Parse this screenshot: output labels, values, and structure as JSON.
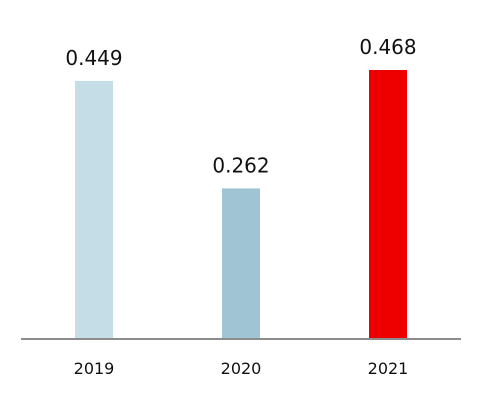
{
  "chart_data": {
    "type": "bar",
    "categories": [
      "2019",
      "2020",
      "2021"
    ],
    "values": [
      0.449,
      0.262,
      0.468
    ],
    "value_labels": [
      "0.449",
      "0.262",
      "0.468"
    ],
    "colors": [
      "#c5dde6",
      "#9fc5d4",
      "#ee0000"
    ],
    "axis_color": "#8c8c8c",
    "ylim": [
      0,
      0.468
    ],
    "grid": false,
    "title": "",
    "xlabel": "",
    "ylabel": ""
  }
}
